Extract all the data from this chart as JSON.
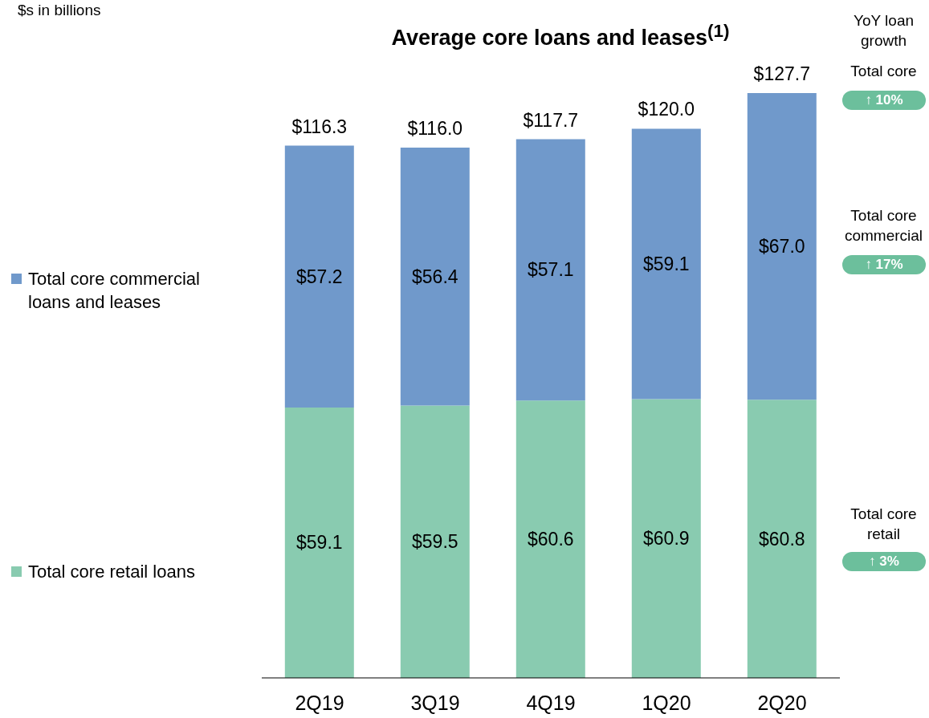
{
  "chart_data": {
    "type": "bar",
    "stacked": true,
    "title": "Average core loans and leases$^{(1)}$",
    "categories": [
      "2Q19",
      "3Q19",
      "4Q19",
      "1Q20",
      "2Q20"
    ],
    "series": [
      {
        "name": "Total core retail loans",
        "color": "#89cbb0",
        "values": [
          59.1,
          59.5,
          60.6,
          60.9,
          60.8
        ],
        "value_labels": [
          "$59.1",
          "$59.5",
          "$60.6",
          "$60.9",
          "$60.8"
        ]
      },
      {
        "name": "Total core commercial loans and leases",
        "color": "#7099cb",
        "values": [
          57.2,
          56.4,
          57.1,
          59.1,
          67.0
        ],
        "value_labels": [
          "$57.2",
          "$56.4",
          "$57.1",
          "$59.1",
          "$67.0"
        ]
      }
    ],
    "totals": [
      "$116.3",
      "$116.0",
      "$117.7",
      "$120.0",
      "$127.7"
    ],
    "legend": "left",
    "annotations": [
      "$s in billions",
      "YoY loan growth",
      "Total core",
      "↑ 10%",
      "Total core commercial",
      "↑ 17%",
      "Total core retail",
      "↑ 3%"
    ]
  }
}
